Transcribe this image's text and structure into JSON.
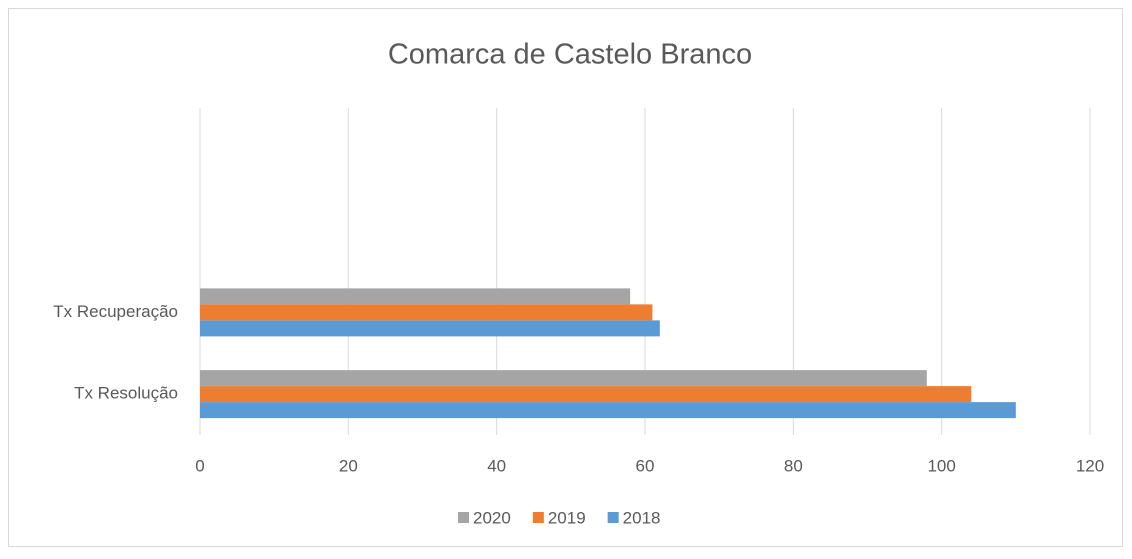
{
  "chart_data": {
    "type": "bar",
    "orientation": "horizontal",
    "title": "Comarca de Castelo Branco",
    "categories": [
      "Tx Resolução",
      "Tx Recuperação",
      null,
      null
    ],
    "series": [
      {
        "name": "2018",
        "color": "#5b9bd5",
        "values": [
          110,
          62,
          null,
          null
        ]
      },
      {
        "name": "2019",
        "color": "#ed7d31",
        "values": [
          104,
          61,
          null,
          null
        ]
      },
      {
        "name": "2020",
        "color": "#a5a5a5",
        "values": [
          98,
          58,
          null,
          null
        ]
      }
    ],
    "xlim": [
      0,
      120
    ],
    "xticks": [
      0,
      20,
      40,
      60,
      80,
      100,
      120
    ],
    "grid": true,
    "legend": "bottom"
  }
}
